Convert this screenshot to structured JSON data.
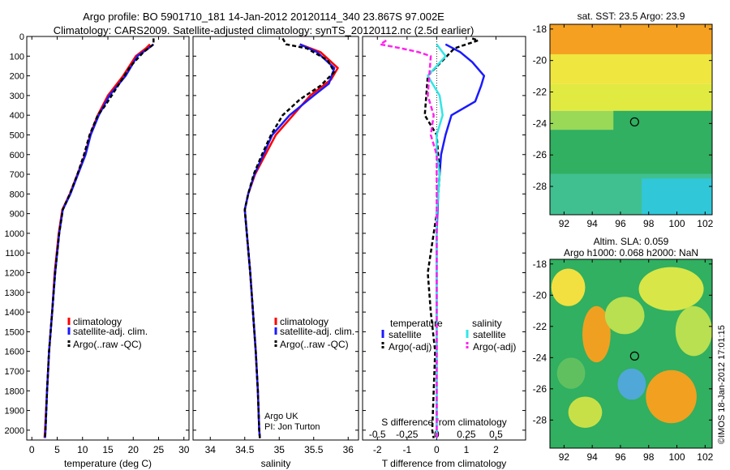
{
  "header": {
    "title_line1": "Argo profile: BO 5901710_181 14-Jan-2012 20120114_340 23.867S 97.002E",
    "title_line2": "Climatology: CARS2009. Satellite-adjusted climatology: synTS_20120112.nc (2.5d earlier)"
  },
  "colors": {
    "climatology": "#ff0000",
    "satellite": "#1a1aff",
    "argo": "#000000",
    "salinity_satellite": "#33e6e6",
    "salinity_argo": "#ff22ee"
  },
  "depth_axis": {
    "ylim": [
      0,
      2050
    ],
    "ticks": [
      0,
      100,
      200,
      300,
      400,
      500,
      600,
      700,
      800,
      900,
      1000,
      1100,
      1200,
      1300,
      1400,
      1500,
      1600,
      1700,
      1800,
      1900,
      2000
    ]
  },
  "chart_data": [
    {
      "type": "line",
      "panel": "temperature",
      "xlabel": "temperature (deg C)",
      "xlim": [
        -1,
        31
      ],
      "xticks": [
        0,
        5,
        10,
        15,
        20,
        25,
        30
      ],
      "xtick_labels": [
        "0",
        "5",
        "10",
        "15",
        "20",
        "25",
        "30"
      ],
      "legend": [
        "climatology",
        "satellite-adj. clim.",
        "Argo(..raw -QC)"
      ],
      "series": [
        {
          "name": "climatology",
          "color": "#ff0000",
          "dash": "",
          "points": [
            [
              23.3,
              40
            ],
            [
              22.5,
              60
            ],
            [
              20.5,
              100
            ],
            [
              18,
              200
            ],
            [
              15,
              300
            ],
            [
              13,
              400
            ],
            [
              11.5,
              500
            ],
            [
              10.5,
              600
            ],
            [
              9,
              700
            ],
            [
              7.5,
              800
            ],
            [
              6,
              880
            ],
            [
              5.3,
              1000
            ],
            [
              4.5,
              1200
            ],
            [
              4,
              1400
            ],
            [
              3.4,
              1600
            ],
            [
              3,
              1800
            ],
            [
              2.6,
              2000
            ],
            [
              2.5,
              2040
            ]
          ]
        },
        {
          "name": "satellite-adj. clim.",
          "color": "#1a1aff",
          "dash": "",
          "points": [
            [
              24,
              40
            ],
            [
              23,
              60
            ],
            [
              20.8,
              100
            ],
            [
              18.5,
              200
            ],
            [
              15.3,
              300
            ],
            [
              13.2,
              400
            ],
            [
              11.6,
              500
            ],
            [
              10.6,
              600
            ],
            [
              9.1,
              700
            ],
            [
              7.6,
              800
            ],
            [
              6.1,
              880
            ],
            [
              5.4,
              1000
            ],
            [
              4.6,
              1200
            ],
            [
              4,
              1400
            ],
            [
              3.4,
              1600
            ],
            [
              3,
              1800
            ],
            [
              2.7,
              2000
            ],
            [
              2.6,
              2040
            ]
          ]
        },
        {
          "name": "Argo(..raw -QC)",
          "color": "#000000",
          "dash": "5,3",
          "points": [
            [
              24,
              10
            ],
            [
              24,
              40
            ],
            [
              22,
              80
            ],
            [
              19.5,
              150
            ],
            [
              17,
              250
            ],
            [
              14.5,
              350
            ],
            [
              13,
              400
            ],
            [
              11.4,
              500
            ],
            [
              10.3,
              600
            ],
            [
              9,
              700
            ],
            [
              7.5,
              800
            ],
            [
              6.1,
              880
            ],
            [
              5.4,
              1000
            ],
            [
              4.6,
              1200
            ],
            [
              4,
              1400
            ],
            [
              3.4,
              1600
            ],
            [
              3,
              1800
            ],
            [
              2.7,
              2000
            ],
            [
              2.6,
              2040
            ]
          ]
        }
      ]
    },
    {
      "type": "line",
      "panel": "salinity",
      "xlabel": "salinity",
      "xlim": [
        33.75,
        36.15
      ],
      "xticks": [
        34,
        34.5,
        35,
        35.5,
        36
      ],
      "xtick_labels": [
        "34",
        "34.5",
        "35",
        "35.5",
        "36"
      ],
      "legend": [
        "climatology",
        "satellite-adj. clim.",
        "Argo(..raw -QC)"
      ],
      "annotation": [
        "Argo UK",
        "PI: Jon Turton"
      ],
      "series": [
        {
          "name": "climatology",
          "color": "#ff0000",
          "dash": "",
          "points": [
            [
              35.3,
              40
            ],
            [
              35.6,
              80
            ],
            [
              35.85,
              160
            ],
            [
              35.75,
              220
            ],
            [
              35.45,
              300
            ],
            [
              35.2,
              400
            ],
            [
              34.95,
              500
            ],
            [
              34.8,
              600
            ],
            [
              34.65,
              700
            ],
            [
              34.55,
              800
            ],
            [
              34.5,
              880
            ],
            [
              34.53,
              1000
            ],
            [
              34.58,
              1200
            ],
            [
              34.62,
              1400
            ],
            [
              34.66,
              1600
            ],
            [
              34.69,
              1800
            ],
            [
              34.71,
              2000
            ],
            [
              34.72,
              2040
            ]
          ]
        },
        {
          "name": "satellite-adj. clim.",
          "color": "#1a1aff",
          "dash": "",
          "points": [
            [
              35.3,
              40
            ],
            [
              35.55,
              80
            ],
            [
              35.8,
              160
            ],
            [
              35.72,
              240
            ],
            [
              35.5,
              300
            ],
            [
              35.15,
              400
            ],
            [
              34.9,
              500
            ],
            [
              34.77,
              600
            ],
            [
              34.64,
              700
            ],
            [
              34.55,
              800
            ],
            [
              34.5,
              880
            ],
            [
              34.53,
              1000
            ],
            [
              34.58,
              1200
            ],
            [
              34.62,
              1400
            ],
            [
              34.66,
              1600
            ],
            [
              34.69,
              1800
            ],
            [
              34.71,
              2000
            ],
            [
              34.72,
              2040
            ]
          ]
        },
        {
          "name": "Argo(..raw -QC)",
          "color": "#000000",
          "dash": "5,3",
          "points": [
            [
              35.05,
              10
            ],
            [
              35.1,
              40
            ],
            [
              35.4,
              60
            ],
            [
              35.7,
              120
            ],
            [
              35.8,
              180
            ],
            [
              35.6,
              250
            ],
            [
              35.3,
              320
            ],
            [
              35.05,
              400
            ],
            [
              34.88,
              500
            ],
            [
              34.75,
              600
            ],
            [
              34.63,
              700
            ],
            [
              34.55,
              800
            ],
            [
              34.5,
              880
            ],
            [
              34.53,
              1000
            ],
            [
              34.58,
              1200
            ],
            [
              34.62,
              1400
            ],
            [
              34.66,
              1600
            ],
            [
              34.69,
              1800
            ],
            [
              34.71,
              2000
            ],
            [
              34.72,
              2040
            ]
          ]
        }
      ]
    },
    {
      "type": "line",
      "panel": "difference",
      "xlabel": "T difference from climatology",
      "xlabel_top": "S difference from climatology",
      "xlim": [
        -2.5,
        3
      ],
      "xticks": [
        -2,
        -1,
        0,
        1,
        2
      ],
      "xtick_labels": [
        "-2",
        "-1",
        "0",
        "1",
        "2"
      ],
      "sticks_at": [
        -2,
        -1,
        0,
        1,
        2
      ],
      "stick_labels": [
        "-0.5",
        "-0.25",
        "0",
        "0.25",
        "0.5"
      ],
      "legend_titles": [
        "temperature",
        "salinity"
      ],
      "legend": [
        "satellite",
        "Argo(-adj)",
        "satellite",
        "Argo(-adj)"
      ],
      "series": [
        {
          "name": "temperature satellite",
          "color": "#1a1aff",
          "dash": "",
          "points": [
            [
              0.3,
              40
            ],
            [
              0.8,
              80
            ],
            [
              1.2,
              130
            ],
            [
              1.6,
              200
            ],
            [
              1.5,
              250
            ],
            [
              1.3,
              330
            ],
            [
              0.5,
              400
            ],
            [
              0.3,
              500
            ],
            [
              0.15,
              600
            ],
            [
              0.1,
              700
            ],
            [
              0.05,
              800
            ],
            [
              0,
              1000
            ],
            [
              0,
              1200
            ],
            [
              0,
              1500
            ],
            [
              0,
              1800
            ],
            [
              0,
              2040
            ]
          ]
        },
        {
          "name": "temperature Argo(-adj)",
          "color": "#000000",
          "dash": "5,3",
          "points": [
            [
              1.2,
              10
            ],
            [
              1.4,
              20
            ],
            [
              0.6,
              60
            ],
            [
              -0.3,
              200
            ],
            [
              -0.4,
              400
            ],
            [
              0,
              500
            ],
            [
              0.1,
              700
            ],
            [
              0,
              900
            ],
            [
              -0.1,
              1000
            ],
            [
              -0.3,
              1200
            ],
            [
              -0.2,
              1400
            ],
            [
              -0.05,
              1600
            ],
            [
              -0.1,
              1800
            ],
            [
              -0.15,
              2000
            ],
            [
              -0.1,
              2040
            ]
          ]
        },
        {
          "name": "salinity satellite",
          "color": "#33e6e6",
          "dash": "",
          "points": [
            [
              0,
              40
            ],
            [
              0.3,
              100
            ],
            [
              -0.3,
              200
            ],
            [
              0.1,
              300
            ],
            [
              0.2,
              400
            ],
            [
              0,
              500
            ],
            [
              0,
              600
            ],
            [
              0.1,
              700
            ],
            [
              0,
              900
            ],
            [
              0,
              1200
            ],
            [
              0,
              1500
            ],
            [
              0,
              1800
            ],
            [
              0,
              2040
            ]
          ]
        },
        {
          "name": "salinity Argo(-adj)",
          "color": "#ff22ee",
          "dash": "6,3",
          "points": [
            [
              -1.7,
              20
            ],
            [
              -1.9,
              40
            ],
            [
              -1.2,
              60
            ],
            [
              -0.6,
              80
            ],
            [
              -0.2,
              100
            ],
            [
              -0.3,
              300
            ],
            [
              -0.1,
              400
            ],
            [
              -0.2,
              500
            ],
            [
              0,
              600
            ],
            [
              0,
              2040
            ]
          ]
        }
      ]
    },
    {
      "type": "heatmap",
      "panel": "sst_map",
      "title": "sat. SST: 23.5 Argo: 23.9",
      "xlim": [
        91,
        102.5
      ],
      "ylim": [
        -29.8,
        -17.7
      ],
      "xticks": [
        92,
        94,
        96,
        98,
        100,
        102
      ],
      "xtick_labels": [
        "92",
        "94",
        "96",
        "98",
        "100",
        "102"
      ],
      "yticks": [
        -18,
        -20,
        -22,
        -24,
        -26,
        -28
      ],
      "ytick_labels": [
        "-18",
        "-20",
        "-22",
        "-24",
        "-26",
        "-28"
      ],
      "marker": [
        97.0,
        -23.9
      ],
      "regions": [
        {
          "color": "#f0e640",
          "cells": [
            [
              91,
              -17.7,
              102.5,
              -21.5
            ]
          ]
        },
        {
          "color": "#f5a020",
          "cells": [
            [
              91,
              -17.7,
              102.5,
              -19.6
            ]
          ]
        },
        {
          "color": "#e0ea40",
          "cells": [
            [
              91,
              -21.5,
              102.5,
              -23.2
            ]
          ]
        },
        {
          "color": "#9ad858",
          "cells": [
            [
              91,
              -23.2,
              102.5,
              -24.4
            ]
          ]
        },
        {
          "color": "#30b060",
          "cells": [
            [
              95.5,
              -23.2,
              102.5,
              -27
            ],
            [
              91,
              -24.4,
              102.5,
              -27.5
            ]
          ]
        },
        {
          "color": "#40c090",
          "cells": [
            [
              91,
              -27.2,
              102.5,
              -29.8
            ]
          ]
        },
        {
          "color": "#30c8d8",
          "cells": [
            [
              97.5,
              -27.5,
              102.5,
              -29.8
            ]
          ]
        }
      ]
    },
    {
      "type": "heatmap",
      "panel": "sla_map",
      "title": "Altim. SLA: 0.059",
      "subtitle": "Argo h1000: 0.068 h2000: NaN",
      "xlim": [
        91,
        102.5
      ],
      "ylim": [
        -29.8,
        -17.7
      ],
      "xticks": [
        92,
        94,
        96,
        98,
        100,
        102
      ],
      "xtick_labels": [
        "92",
        "94",
        "96",
        "98",
        "100",
        "102"
      ],
      "yticks": [
        -18,
        -20,
        -22,
        -24,
        -26,
        -28
      ],
      "ytick_labels": [
        "-18",
        "-20",
        "-22",
        "-24",
        "-26",
        "-28"
      ],
      "marker": [
        97.0,
        -23.9
      ],
      "background": "#30b060",
      "blobs": [
        {
          "cx": 92.3,
          "cy": -19.5,
          "rx": 1.2,
          "ry": 1.2,
          "color": "#f2e040"
        },
        {
          "cx": 94.3,
          "cy": -22.5,
          "rx": 1.0,
          "ry": 1.8,
          "color": "#f0a020"
        },
        {
          "cx": 96.3,
          "cy": -21.3,
          "rx": 1.4,
          "ry": 1.2,
          "color": "#b8e050"
        },
        {
          "cx": 99.6,
          "cy": -19.6,
          "rx": 2.3,
          "ry": 1.4,
          "color": "#d8e648"
        },
        {
          "cx": 101.2,
          "cy": -22.3,
          "rx": 1.3,
          "ry": 1.6,
          "color": "#b8e050"
        },
        {
          "cx": 99.6,
          "cy": -26.5,
          "rx": 1.8,
          "ry": 1.7,
          "color": "#f2a020"
        },
        {
          "cx": 96.8,
          "cy": -25.7,
          "rx": 1.0,
          "ry": 1.0,
          "color": "#50a8d8"
        },
        {
          "cx": 93.5,
          "cy": -27.5,
          "rx": 1.2,
          "ry": 1.0,
          "color": "#c8e048"
        },
        {
          "cx": 92.5,
          "cy": -25.0,
          "rx": 1.0,
          "ry": 1.0,
          "color": "#60c060"
        }
      ]
    }
  ],
  "credit": "©IMOS 18-Jan-2012 17:01:15"
}
